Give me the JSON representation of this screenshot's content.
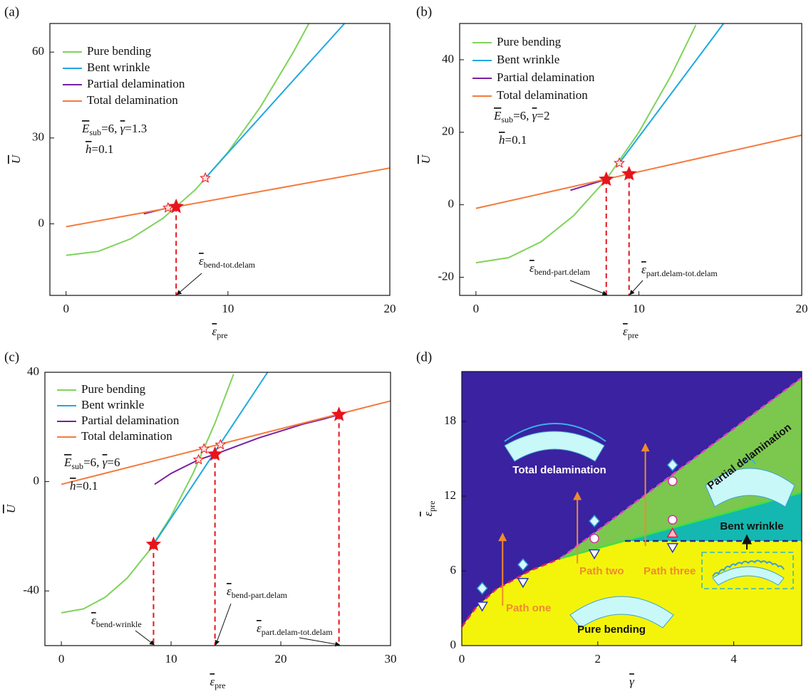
{
  "chart_data": [
    {
      "type": "line",
      "label": "(a)",
      "x_label": "ε",
      "x_label_sub": "pre",
      "y_label": "U",
      "xlim": [
        -1,
        20
      ],
      "ylim": [
        -25,
        70
      ],
      "xticks": [
        0,
        10,
        20
      ],
      "yticks": [
        0,
        30,
        60
      ],
      "series": [
        {
          "name": "Pure bending",
          "color": "#7fd35a",
          "x": [
            0,
            2,
            4,
            6,
            8,
            10,
            12,
            14,
            15
          ],
          "values": [
            -11,
            -9.6,
            -5.2,
            2.0,
            12.0,
            25.0,
            40.8,
            59.6,
            70
          ]
        },
        {
          "name": "Bent wrinkle",
          "color": "#1fa8e0",
          "x": [
            8.6,
            17.2
          ],
          "values": [
            16,
            70
          ]
        },
        {
          "name": "Partial delamination",
          "color": "#7a1fa2",
          "x": [
            4.8,
            6.3
          ],
          "values": [
            3.5,
            5.6
          ]
        },
        {
          "name": "Total delamination",
          "color": "#f47a3c",
          "x": [
            0,
            20
          ],
          "values": [
            -1,
            19.5
          ]
        }
      ],
      "stars": [
        {
          "x": 6.3,
          "y": 5.6,
          "filled": false
        },
        {
          "x": 8.6,
          "y": 16,
          "filled": false
        },
        {
          "x": 6.8,
          "y": 6.0,
          "filled": true
        }
      ],
      "annotations": [
        {
          "symbol": "ε",
          "sub": "bend-tot.delam"
        }
      ],
      "params": {
        "E": "E",
        "E_sub": "sub",
        "E_value": "=6, ",
        "gamma": "γ",
        "gamma_value": "=1.3",
        "h": "h",
        "h_value": "=0.1"
      }
    },
    {
      "type": "line",
      "label": "(b)",
      "x_label": "ε",
      "x_label_sub": "pre",
      "y_label": "U",
      "xlim": [
        -1,
        20
      ],
      "ylim": [
        -25,
        50
      ],
      "xticks": [
        0,
        10,
        20
      ],
      "yticks": [
        -20,
        0,
        20,
        40
      ],
      "series": [
        {
          "name": "Pure bending",
          "color": "#7fd35a",
          "x": [
            0,
            2,
            4,
            6,
            8,
            10,
            12,
            13.5
          ],
          "values": [
            -16,
            -14.6,
            -10.2,
            -3.0,
            7.0,
            20.0,
            35.8,
            49.6
          ]
        },
        {
          "name": "Bent wrinkle",
          "color": "#1fa8e0",
          "x": [
            8.8,
            15.2
          ],
          "values": [
            11.5,
            50
          ]
        },
        {
          "name": "Partial delamination",
          "color": "#7a1fa2",
          "x": [
            5.8,
            8.0
          ],
          "values": [
            4.0,
            7.0
          ]
        },
        {
          "name": "Total delamination",
          "color": "#f47a3c",
          "x": [
            0,
            20
          ],
          "values": [
            -1,
            19.2
          ]
        }
      ],
      "stars": [
        {
          "x": 8.8,
          "y": 11.5,
          "filled": false
        },
        {
          "x": 8.0,
          "y": 7.0,
          "filled": true
        },
        {
          "x": 9.4,
          "y": 8.5,
          "filled": true
        }
      ],
      "annotations": [
        {
          "symbol": "ε",
          "sub": "bend-part.delam"
        },
        {
          "symbol": "ε",
          "sub": "part.delam-tot.delam"
        }
      ],
      "params": {
        "E": "E",
        "E_sub": "sub",
        "E_value": "=6, ",
        "gamma": "γ",
        "gamma_value": "=2",
        "h": "h",
        "h_value": "=0.1"
      }
    },
    {
      "type": "line",
      "label": "(c)",
      "x_label": "ε",
      "x_label_sub": "pre",
      "y_label": "U",
      "xlim": [
        -1.5,
        30
      ],
      "ylim": [
        -60,
        40
      ],
      "xticks": [
        0,
        10,
        20,
        30
      ],
      "yticks": [
        -40,
        0,
        40
      ],
      "series": [
        {
          "name": "Pure bending",
          "color": "#7fd35a",
          "x": [
            0,
            2,
            4,
            6,
            8,
            10,
            12,
            14,
            15.7
          ],
          "values": [
            -48,
            -46.6,
            -42.3,
            -35.3,
            -25.3,
            -12.6,
            3.0,
            21.4,
            39.3
          ]
        },
        {
          "name": "Bent wrinkle",
          "color": "#1fa8e0",
          "x": [
            8.4,
            18.8
          ],
          "values": [
            -23,
            40
          ]
        },
        {
          "name": "Partial delamination",
          "color": "#7a1fa2",
          "x": [
            8.5,
            10,
            12,
            12.5,
            14,
            16,
            18,
            20,
            22,
            24,
            25.3
          ],
          "values": [
            -1,
            3,
            7,
            8,
            10,
            13,
            16,
            18.5,
            21,
            23,
            24.5
          ]
        },
        {
          "name": "Total delamination",
          "color": "#f47a3c",
          "x": [
            0,
            30
          ],
          "values": [
            -1,
            29.5
          ]
        }
      ],
      "stars": [
        {
          "x": 12.5,
          "y": 8,
          "filled": false
        },
        {
          "x": 13,
          "y": 12,
          "filled": false
        },
        {
          "x": 14.5,
          "y": 13.5,
          "filled": false
        },
        {
          "x": 8.4,
          "y": -23,
          "filled": true
        },
        {
          "x": 14,
          "y": 10,
          "filled": true
        },
        {
          "x": 25.3,
          "y": 24.5,
          "filled": true
        }
      ],
      "annotations": [
        {
          "symbol": "ε",
          "sub": "bend-wrinkle"
        },
        {
          "symbol": "ε",
          "sub": "bend-part.delam"
        },
        {
          "symbol": "ε",
          "sub": "part.delam-tot.delam"
        }
      ],
      "params": {
        "E": "E",
        "E_sub": "sub",
        "E_value": "=6, ",
        "gamma": "γ",
        "gamma_value": "=6",
        "h": "h",
        "h_value": "=0.1"
      }
    },
    {
      "type": "phase",
      "label": "(d)",
      "x_label": "γ",
      "y_label": "ε",
      "y_label_sub": "pre",
      "xlim": [
        0,
        5
      ],
      "ylim": [
        0,
        22
      ],
      "xticks": [
        0,
        2,
        4
      ],
      "yticks": [
        0,
        6,
        12,
        18
      ],
      "regions": [
        {
          "name": "Total delamination",
          "color": "#3a22a0",
          "x": [
            0,
            5,
            5,
            0
          ],
          "values": [
            0,
            0,
            22,
            22
          ]
        },
        {
          "name": "Partial delamination",
          "color": "#7cc84e",
          "x": [
            1.45,
            5,
            5
          ],
          "values": [
            7,
            21.5,
            12.3
          ]
        },
        {
          "name": "Bent wrinkle",
          "color": "#14b8b0",
          "x": [
            2.4,
            5,
            5
          ],
          "values": [
            8.4,
            12.3,
            8.4
          ]
        },
        {
          "name": "Pure bending",
          "color": "#f4f40a",
          "x": [
            0,
            0,
            0.2,
            0.5,
            1,
            1.45,
            2.4,
            5,
            5
          ],
          "values": [
            0,
            1.5,
            3,
            4.5,
            6,
            7,
            8.4,
            8.4,
            0
          ]
        }
      ],
      "boundaries": [
        {
          "color": "#e0206a",
          "dashed": true,
          "x": [
            0,
            0.2,
            0.5,
            1,
            1.45
          ],
          "values": [
            1.5,
            3,
            4.5,
            6,
            7
          ]
        },
        {
          "color": "#e040c8",
          "dashed": true,
          "x": [
            1.45,
            5
          ],
          "values": [
            7,
            21.5
          ]
        },
        {
          "color": "#40e040",
          "dashed": false,
          "x": [
            1.45,
            5
          ],
          "values": [
            7,
            12.3
          ]
        },
        {
          "color": "#2a2a90",
          "dashed": true,
          "x": [
            2.4,
            5
          ],
          "values": [
            8.4,
            8.4
          ]
        }
      ],
      "markers": [
        {
          "shape": "diamond",
          "x": 0.3,
          "y": 4.6
        },
        {
          "shape": "triangle-down",
          "x": 0.3,
          "y": 3.2
        },
        {
          "shape": "diamond",
          "x": 0.9,
          "y": 6.5
        },
        {
          "shape": "triangle-down",
          "x": 0.9,
          "y": 5.1
        },
        {
          "shape": "diamond",
          "x": 1.95,
          "y": 10.0
        },
        {
          "shape": "circle",
          "x": 1.95,
          "y": 8.6
        },
        {
          "shape": "triangle-down",
          "x": 1.95,
          "y": 7.4
        },
        {
          "shape": "diamond",
          "x": 3.1,
          "y": 14.5
        },
        {
          "shape": "circle",
          "x": 3.1,
          "y": 13.2
        },
        {
          "shape": "circle",
          "x": 3.1,
          "y": 10.1
        },
        {
          "shape": "triangle-up",
          "x": 3.1,
          "y": 9.0
        },
        {
          "shape": "triangle-down",
          "x": 3.1,
          "y": 7.9
        }
      ],
      "paths": [
        {
          "name": "Path one",
          "x": 0.6,
          "from": 3.2,
          "to": 9.0
        },
        {
          "name": "Path two",
          "x": 1.7,
          "from": 6.6,
          "to": 12.3
        },
        {
          "name": "Path three",
          "x": 2.7,
          "from": 8.0,
          "to": 16.2
        }
      ]
    }
  ]
}
